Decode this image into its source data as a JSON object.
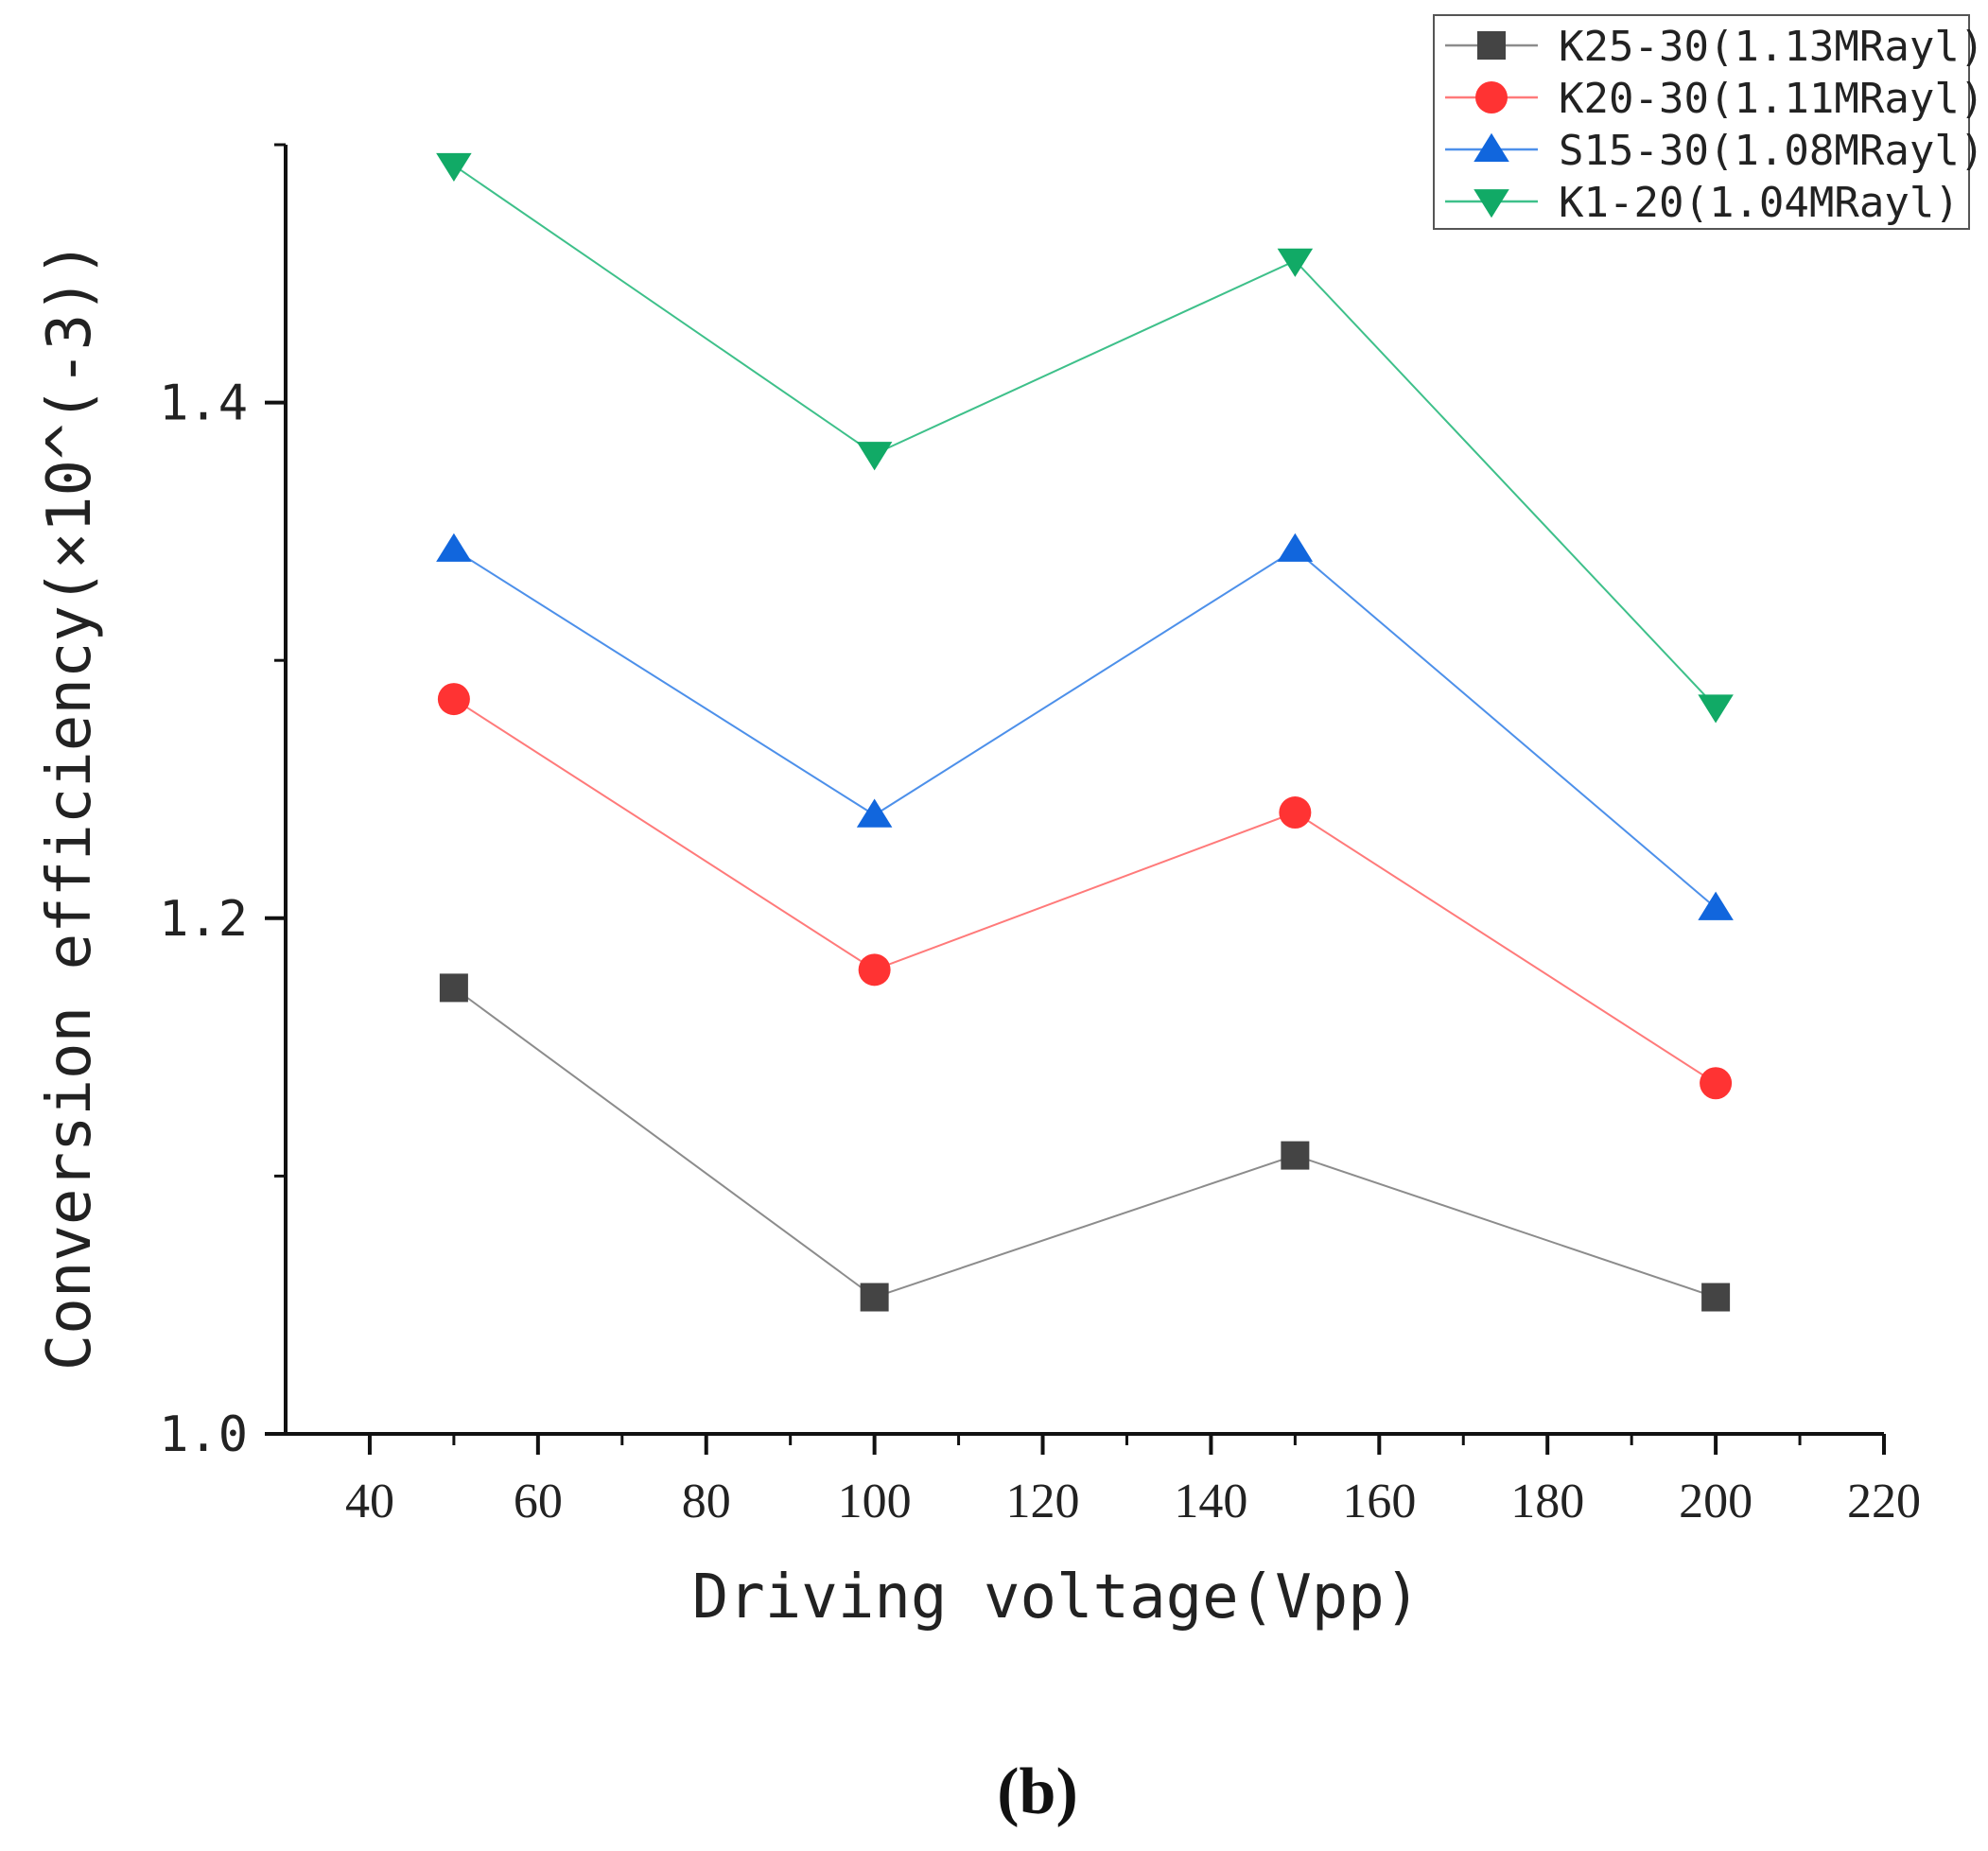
{
  "chart_data": {
    "type": "line",
    "title": "",
    "xlabel": "Driving voltage(Vpp)",
    "ylabel": "Conversion efficiency(×10^(-3))",
    "xlim": [
      30,
      220
    ],
    "ylim": [
      1.0,
      1.5
    ],
    "xticks": [
      40,
      60,
      80,
      100,
      120,
      140,
      160,
      180,
      200,
      220
    ],
    "xtick_labels": [
      "40",
      "60",
      "80",
      "100",
      "120",
      "140",
      "160",
      "180",
      "200",
      "220"
    ],
    "xminor_step": 10,
    "yticks": [
      1.0,
      1.2,
      1.4
    ],
    "ytick_labels": [
      "1.0",
      "1.2",
      "1.4"
    ],
    "yminor_step": 0.1,
    "grid": false,
    "legend_position": "top-right",
    "x": [
      50,
      100,
      150,
      200
    ],
    "series": [
      {
        "name": "K25-30(1.13MRayl)",
        "marker": "square",
        "color": "#444444",
        "line_color": "#8c8c8c",
        "values": [
          1.173,
          1.053,
          1.108,
          1.053
        ]
      },
      {
        "name": "K20-30(1.11MRayl)",
        "marker": "circle",
        "color": "#ff3333",
        "line_color": "#ff7a7a",
        "values": [
          1.285,
          1.18,
          1.241,
          1.136
        ]
      },
      {
        "name": "S15-30(1.08MRayl)",
        "marker": "triangle-up",
        "color": "#1166dd",
        "line_color": "#4d90ea",
        "values": [
          1.343,
          1.24,
          1.343,
          1.204
        ]
      },
      {
        "name": "K1-20(1.04MRayl)",
        "marker": "triangle-down",
        "color": "#11aa66",
        "line_color": "#3ec08a",
        "values": [
          1.492,
          1.38,
          1.455,
          1.282
        ]
      }
    ],
    "caption": "(b)"
  }
}
